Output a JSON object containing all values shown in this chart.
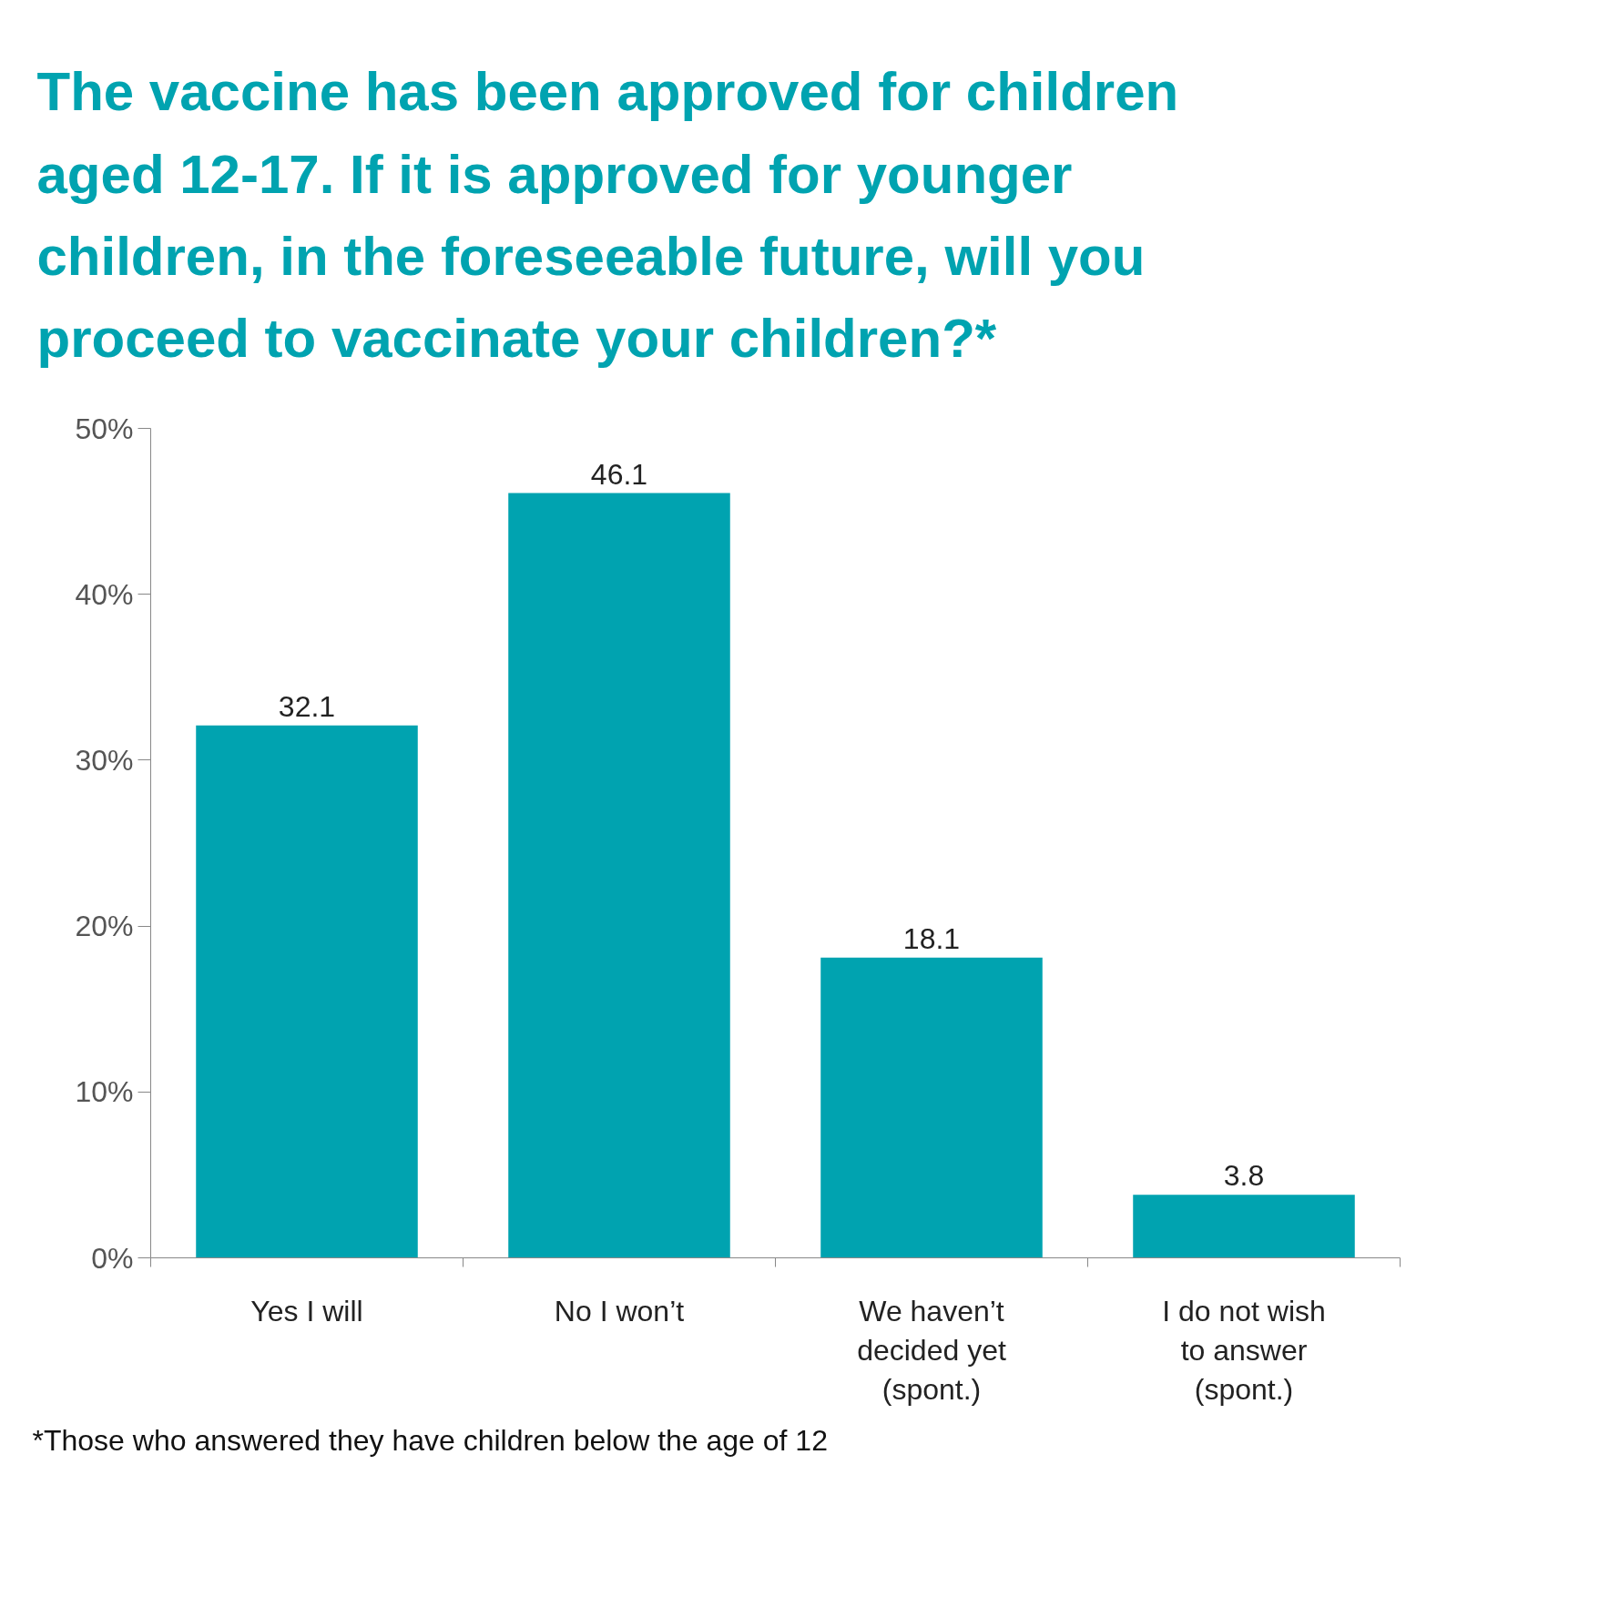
{
  "chart_data": {
    "type": "bar",
    "title": "The vaccine has been approved for children aged 12-17. If it is approved for younger children, in the foreseeable future, will you proceed to vaccinate your children?*",
    "categories": [
      "Yes I will",
      "No I won’t",
      "We haven’t decided yet (spont.)",
      "I do not wish to answer (spont.)"
    ],
    "values": [
      32.1,
      46.1,
      18.1,
      3.8
    ],
    "color": "#00a3b0",
    "ylim": [
      0,
      50
    ],
    "yticks": [
      {
        "value": 0,
        "label": "0%"
      },
      {
        "value": 10,
        "label": "10%"
      },
      {
        "value": 20,
        "label": "20%"
      },
      {
        "value": 30,
        "label": "30%"
      },
      {
        "value": 40,
        "label": "40%"
      },
      {
        "value": 50,
        "label": "50%"
      }
    ],
    "data_labels": true,
    "grid": false,
    "annotations": [
      "*Those who answered they have children below the age of 12"
    ]
  }
}
